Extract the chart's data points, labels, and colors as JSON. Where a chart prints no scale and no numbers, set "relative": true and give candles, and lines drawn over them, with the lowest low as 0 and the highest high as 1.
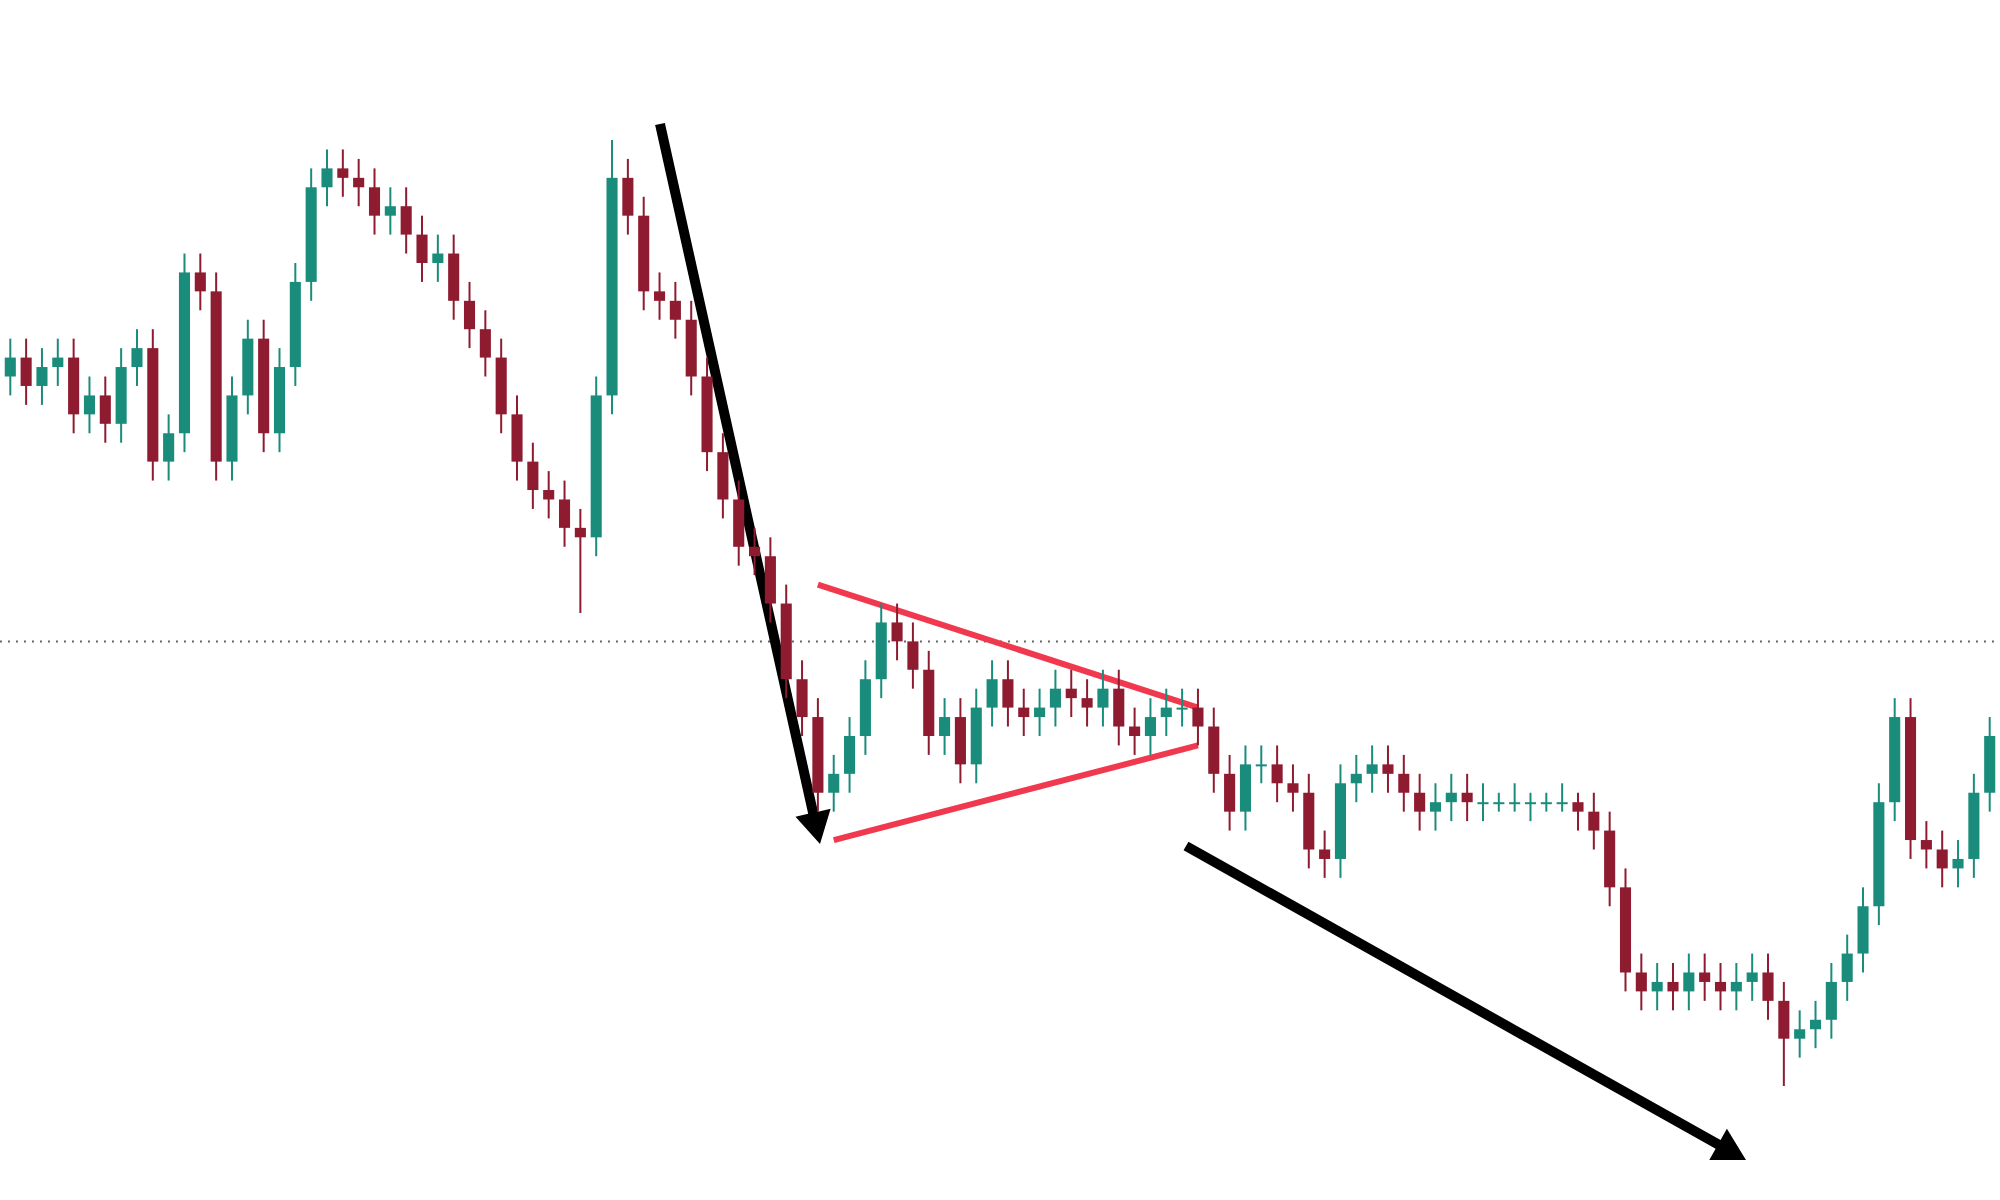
{
  "chart_data": {
    "type": "candlestick",
    "relative": true,
    "tick_labels": false,
    "grid": false,
    "categories": [
      null,
      null,
      null,
      null,
      null,
      null,
      null,
      null,
      null,
      null,
      null,
      null,
      null,
      null,
      null,
      null,
      null,
      null,
      null,
      null,
      null,
      null,
      null,
      null,
      null,
      null,
      null,
      null,
      null,
      null,
      null,
      null,
      null,
      null,
      null,
      null,
      null,
      null,
      null,
      null,
      null,
      null,
      null,
      null,
      null,
      null,
      null,
      null,
      null,
      null,
      null,
      null,
      null,
      null,
      null,
      null,
      null,
      null,
      null,
      null,
      null,
      null,
      null,
      null,
      null,
      null,
      null,
      null,
      null,
      null,
      null,
      null,
      null,
      null,
      null,
      null,
      null,
      null,
      null,
      null,
      null,
      null,
      null,
      null,
      null,
      null,
      null,
      null,
      null,
      null,
      null,
      null,
      null,
      null,
      null,
      null,
      null,
      null,
      null,
      null,
      null,
      null,
      null,
      null,
      null,
      null,
      null,
      null,
      null,
      null,
      null,
      null,
      null,
      null,
      null,
      null,
      null,
      null,
      null,
      null,
      null,
      null,
      null,
      null,
      null,
      null
    ],
    "ohlc": [
      [
        0.75,
        0.79,
        0.73,
        0.77
      ],
      [
        0.77,
        0.79,
        0.72,
        0.74
      ],
      [
        0.74,
        0.78,
        0.72,
        0.76
      ],
      [
        0.76,
        0.79,
        0.74,
        0.77
      ],
      [
        0.77,
        0.79,
        0.69,
        0.71
      ],
      [
        0.71,
        0.75,
        0.69,
        0.73
      ],
      [
        0.73,
        0.75,
        0.68,
        0.7
      ],
      [
        0.7,
        0.78,
        0.68,
        0.76
      ],
      [
        0.76,
        0.8,
        0.74,
        0.78
      ],
      [
        0.78,
        0.8,
        0.64,
        0.66
      ],
      [
        0.66,
        0.71,
        0.64,
        0.69
      ],
      [
        0.69,
        0.88,
        0.67,
        0.86
      ],
      [
        0.86,
        0.88,
        0.82,
        0.84
      ],
      [
        0.84,
        0.86,
        0.64,
        0.66
      ],
      [
        0.66,
        0.75,
        0.64,
        0.73
      ],
      [
        0.73,
        0.81,
        0.71,
        0.79
      ],
      [
        0.79,
        0.81,
        0.67,
        0.69
      ],
      [
        0.69,
        0.78,
        0.67,
        0.76
      ],
      [
        0.76,
        0.87,
        0.74,
        0.85
      ],
      [
        0.85,
        0.97,
        0.83,
        0.95
      ],
      [
        0.95,
        0.99,
        0.93,
        0.97
      ],
      [
        0.97,
        0.99,
        0.94,
        0.96
      ],
      [
        0.96,
        0.98,
        0.93,
        0.95
      ],
      [
        0.95,
        0.97,
        0.9,
        0.92
      ],
      [
        0.92,
        0.95,
        0.9,
        0.93
      ],
      [
        0.93,
        0.95,
        0.88,
        0.9
      ],
      [
        0.9,
        0.92,
        0.85,
        0.87
      ],
      [
        0.87,
        0.9,
        0.85,
        0.88
      ],
      [
        0.88,
        0.9,
        0.81,
        0.83
      ],
      [
        0.83,
        0.85,
        0.78,
        0.8
      ],
      [
        0.8,
        0.82,
        0.75,
        0.77
      ],
      [
        0.77,
        0.79,
        0.69,
        0.71
      ],
      [
        0.71,
        0.73,
        0.64,
        0.66
      ],
      [
        0.66,
        0.68,
        0.61,
        0.63
      ],
      [
        0.63,
        0.65,
        0.6,
        0.62
      ],
      [
        0.62,
        0.64,
        0.57,
        0.59
      ],
      [
        0.59,
        0.61,
        0.5,
        0.58
      ],
      [
        0.58,
        0.75,
        0.56,
        0.73
      ],
      [
        0.73,
        1.0,
        0.71,
        0.96
      ],
      [
        0.96,
        0.98,
        0.9,
        0.92
      ],
      [
        0.92,
        0.94,
        0.82,
        0.84
      ],
      [
        0.84,
        0.86,
        0.81,
        0.83
      ],
      [
        0.83,
        0.85,
        0.79,
        0.81
      ],
      [
        0.81,
        0.83,
        0.73,
        0.75
      ],
      [
        0.75,
        0.77,
        0.65,
        0.67
      ],
      [
        0.67,
        0.69,
        0.6,
        0.62
      ],
      [
        0.62,
        0.64,
        0.55,
        0.57
      ],
      [
        0.57,
        0.59,
        0.54,
        0.56
      ],
      [
        0.56,
        0.58,
        0.49,
        0.51
      ],
      [
        0.51,
        0.53,
        0.41,
        0.43
      ],
      [
        0.43,
        0.45,
        0.37,
        0.39
      ],
      [
        0.39,
        0.41,
        0.29,
        0.31
      ],
      [
        0.31,
        0.35,
        0.29,
        0.33
      ],
      [
        0.33,
        0.39,
        0.31,
        0.37
      ],
      [
        0.37,
        0.45,
        0.35,
        0.43
      ],
      [
        0.43,
        0.51,
        0.41,
        0.49
      ],
      [
        0.49,
        0.51,
        0.45,
        0.47
      ],
      [
        0.47,
        0.49,
        0.42,
        0.44
      ],
      [
        0.44,
        0.46,
        0.35,
        0.37
      ],
      [
        0.37,
        0.41,
        0.35,
        0.39
      ],
      [
        0.39,
        0.41,
        0.32,
        0.34
      ],
      [
        0.34,
        0.42,
        0.32,
        0.4
      ],
      [
        0.4,
        0.45,
        0.38,
        0.43
      ],
      [
        0.43,
        0.45,
        0.38,
        0.4
      ],
      [
        0.4,
        0.42,
        0.37,
        0.39
      ],
      [
        0.39,
        0.42,
        0.37,
        0.4
      ],
      [
        0.4,
        0.44,
        0.38,
        0.42
      ],
      [
        0.42,
        0.44,
        0.39,
        0.41
      ],
      [
        0.41,
        0.43,
        0.38,
        0.4
      ],
      [
        0.4,
        0.44,
        0.38,
        0.42
      ],
      [
        0.42,
        0.44,
        0.36,
        0.38
      ],
      [
        0.38,
        0.4,
        0.35,
        0.37
      ],
      [
        0.37,
        0.41,
        0.35,
        0.39
      ],
      [
        0.39,
        0.42,
        0.37,
        0.4
      ],
      [
        0.4,
        0.42,
        0.38,
        0.4
      ],
      [
        0.4,
        0.42,
        0.36,
        0.38
      ],
      [
        0.38,
        0.4,
        0.31,
        0.33
      ],
      [
        0.33,
        0.35,
        0.27,
        0.29
      ],
      [
        0.29,
        0.36,
        0.27,
        0.34
      ],
      [
        0.34,
        0.36,
        0.32,
        0.34
      ],
      [
        0.34,
        0.36,
        0.3,
        0.32
      ],
      [
        0.32,
        0.34,
        0.29,
        0.31
      ],
      [
        0.31,
        0.33,
        0.23,
        0.25
      ],
      [
        0.25,
        0.27,
        0.22,
        0.24
      ],
      [
        0.24,
        0.34,
        0.22,
        0.32
      ],
      [
        0.32,
        0.35,
        0.3,
        0.33
      ],
      [
        0.33,
        0.36,
        0.31,
        0.34
      ],
      [
        0.34,
        0.36,
        0.31,
        0.33
      ],
      [
        0.33,
        0.35,
        0.29,
        0.31
      ],
      [
        0.31,
        0.33,
        0.27,
        0.29
      ],
      [
        0.29,
        0.32,
        0.27,
        0.3
      ],
      [
        0.3,
        0.33,
        0.28,
        0.31
      ],
      [
        0.31,
        0.33,
        0.28,
        0.3
      ],
      [
        0.3,
        0.32,
        0.28,
        0.3
      ],
      [
        0.3,
        0.31,
        0.29,
        0.3
      ],
      [
        0.3,
        0.32,
        0.29,
        0.3
      ],
      [
        0.3,
        0.31,
        0.28,
        0.3
      ],
      [
        0.3,
        0.31,
        0.29,
        0.3
      ],
      [
        0.3,
        0.32,
        0.29,
        0.3
      ],
      [
        0.3,
        0.31,
        0.27,
        0.29
      ],
      [
        0.29,
        0.31,
        0.25,
        0.27
      ],
      [
        0.27,
        0.29,
        0.19,
        0.21
      ],
      [
        0.21,
        0.23,
        0.1,
        0.12
      ],
      [
        0.12,
        0.14,
        0.08,
        0.1
      ],
      [
        0.1,
        0.13,
        0.08,
        0.11
      ],
      [
        0.11,
        0.13,
        0.08,
        0.1
      ],
      [
        0.1,
        0.14,
        0.08,
        0.12
      ],
      [
        0.12,
        0.14,
        0.09,
        0.11
      ],
      [
        0.11,
        0.13,
        0.08,
        0.1
      ],
      [
        0.1,
        0.13,
        0.08,
        0.11
      ],
      [
        0.11,
        0.14,
        0.09,
        0.12
      ],
      [
        0.12,
        0.14,
        0.07,
        0.09
      ],
      [
        0.09,
        0.11,
        0.0,
        0.05
      ],
      [
        0.05,
        0.08,
        0.03,
        0.06
      ],
      [
        0.06,
        0.09,
        0.04,
        0.07
      ],
      [
        0.07,
        0.13,
        0.05,
        0.11
      ],
      [
        0.11,
        0.16,
        0.09,
        0.14
      ],
      [
        0.14,
        0.21,
        0.12,
        0.19
      ],
      [
        0.19,
        0.32,
        0.17,
        0.3
      ],
      [
        0.3,
        0.41,
        0.28,
        0.39
      ],
      [
        0.39,
        0.41,
        0.24,
        0.26
      ],
      [
        0.26,
        0.28,
        0.23,
        0.25
      ],
      [
        0.25,
        0.27,
        0.21,
        0.23
      ],
      [
        0.23,
        0.26,
        0.21,
        0.24
      ],
      [
        0.24,
        0.33,
        0.22,
        0.31
      ],
      [
        0.31,
        0.39,
        0.29,
        0.37
      ]
    ],
    "series": [
      {
        "type": "line",
        "color": "#f0394f",
        "values": [
          null,
          null,
          null,
          null,
          null,
          null,
          null,
          null,
          null,
          null,
          null,
          null,
          null,
          null,
          null,
          null,
          null,
          null,
          null,
          null,
          null,
          null,
          null,
          null,
          null,
          null,
          null,
          null,
          null,
          null,
          null,
          null,
          null,
          null,
          null,
          null,
          null,
          null,
          null,
          null,
          null,
          null,
          null,
          null,
          null,
          null,
          null,
          null,
          null,
          null,
          null,
          0.53,
          null,
          null,
          null,
          null,
          null,
          null,
          null,
          null,
          null,
          null,
          null,
          null,
          null,
          null,
          null,
          null,
          null,
          null,
          null,
          null,
          null,
          null,
          null,
          0.4,
          null,
          null,
          null,
          null,
          null,
          null,
          null,
          null,
          null,
          null,
          null,
          null,
          null,
          null,
          null,
          null,
          null,
          null,
          null,
          null,
          null,
          null,
          null,
          null,
          null,
          null,
          null,
          null,
          null,
          null,
          null,
          null,
          null,
          null,
          null,
          null,
          null,
          null,
          null,
          null,
          null,
          null,
          null,
          null,
          null,
          null,
          null,
          null,
          null,
          null
        ]
      },
      {
        "type": "line",
        "color": "#f0394f",
        "values": [
          null,
          null,
          null,
          null,
          null,
          null,
          null,
          null,
          null,
          null,
          null,
          null,
          null,
          null,
          null,
          null,
          null,
          null,
          null,
          null,
          null,
          null,
          null,
          null,
          null,
          null,
          null,
          null,
          null,
          null,
          null,
          null,
          null,
          null,
          null,
          null,
          null,
          null,
          null,
          null,
          null,
          null,
          null,
          null,
          null,
          null,
          null,
          null,
          null,
          null,
          null,
          null,
          0.26,
          null,
          null,
          null,
          null,
          null,
          null,
          null,
          null,
          null,
          null,
          null,
          null,
          null,
          null,
          null,
          null,
          null,
          null,
          null,
          null,
          null,
          null,
          0.36,
          null,
          null,
          null,
          null,
          null,
          null,
          null,
          null,
          null,
          null,
          null,
          null,
          null,
          null,
          null,
          null,
          null,
          null,
          null,
          null,
          null,
          null,
          null,
          null,
          null,
          null,
          null,
          null,
          null,
          null,
          null,
          null,
          null,
          null,
          null,
          null,
          null,
          null,
          null,
          null,
          null,
          null,
          null,
          null,
          null,
          null,
          null,
          null,
          null,
          null
        ]
      }
    ],
    "ref_lines": [
      {
        "axis": "y",
        "value": 0.47,
        "color": "#666666",
        "line_style": "dotted"
      }
    ]
  }
}
